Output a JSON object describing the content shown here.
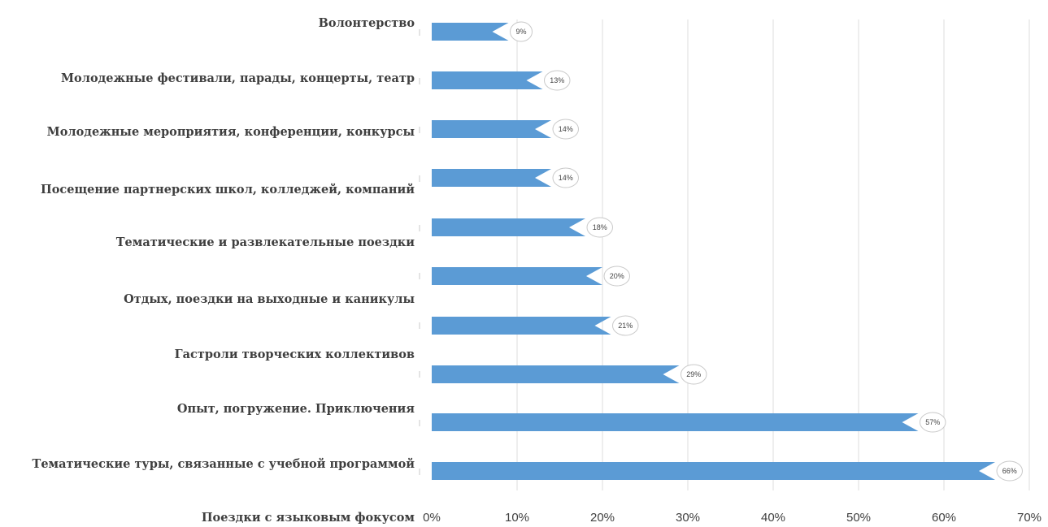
{
  "chart_data": {
    "type": "bar",
    "orientation": "horizontal",
    "categories": [
      "Волонтерство",
      "Молодежные фестивали, парады, концерты, театр",
      "Молодежные мероприятия, конференции, конкурсы",
      "Посещение партнерских школ, колледжей, компаний",
      "Тематические и развлекательные поездки",
      "Отдых, поездки на выходные и каникулы",
      "Гастроли творческих коллективов",
      "Опыт, погружение. Приключения",
      "Тематические туры, связанные с учебной программой",
      "Поездки с языковым фокусом"
    ],
    "bar_values": [
      9,
      13,
      14,
      14,
      18,
      20,
      21,
      29,
      57,
      66
    ],
    "data_labels": [
      "9%",
      "13%",
      "14%",
      "14%",
      "18%",
      "20%",
      "21%",
      "29%",
      "57%",
      "66%"
    ],
    "x_ticks": [
      "0%",
      "10%",
      "20%",
      "30%",
      "40%",
      "50%",
      "60%",
      "70%"
    ],
    "xlim": [
      0,
      70
    ],
    "grid": true,
    "colors": {
      "bar": "#5b9bd5",
      "grid": "#dcdcdc",
      "text": "#3f3f3f"
    }
  }
}
